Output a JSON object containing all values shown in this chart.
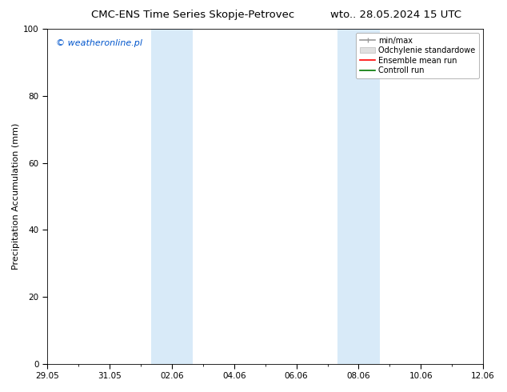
{
  "title_left": "CMC-ENS Time Series Skopje-Petrovec",
  "title_right": "wto.. 28.05.2024 15 UTC",
  "ylabel": "Precipitation Accumulation (mm)",
  "watermark": "© weatheronline.pl",
  "watermark_color": "#0055cc",
  "ylim": [
    0,
    100
  ],
  "yticks": [
    0,
    20,
    40,
    60,
    80,
    100
  ],
  "background_color": "#ffffff",
  "plot_bg_color": "#ffffff",
  "shaded_regions": [
    {
      "x_start": 3.33,
      "x_end": 4.67,
      "color": "#d8eaf8"
    },
    {
      "x_start": 9.33,
      "x_end": 10.67,
      "color": "#d8eaf8"
    }
  ],
  "xlim": [
    0,
    14
  ],
  "xtick_positions": [
    0,
    2,
    4,
    6,
    8,
    10,
    12,
    14
  ],
  "xtick_labels": [
    "29.05",
    "31.05",
    "02.06",
    "04.06",
    "06.06",
    "08.06",
    "10.06",
    "12.06"
  ],
  "legend_labels": [
    "min/max",
    "Odchylenie standardowe",
    "Ensemble mean run",
    "Controll run"
  ],
  "minmax_color": "#999999",
  "std_color": "#cccccc",
  "ensemble_color": "#ff0000",
  "control_color": "#007700",
  "title_fontsize": 9.5,
  "ylabel_fontsize": 8,
  "tick_fontsize": 7.5,
  "watermark_fontsize": 8,
  "legend_fontsize": 7
}
